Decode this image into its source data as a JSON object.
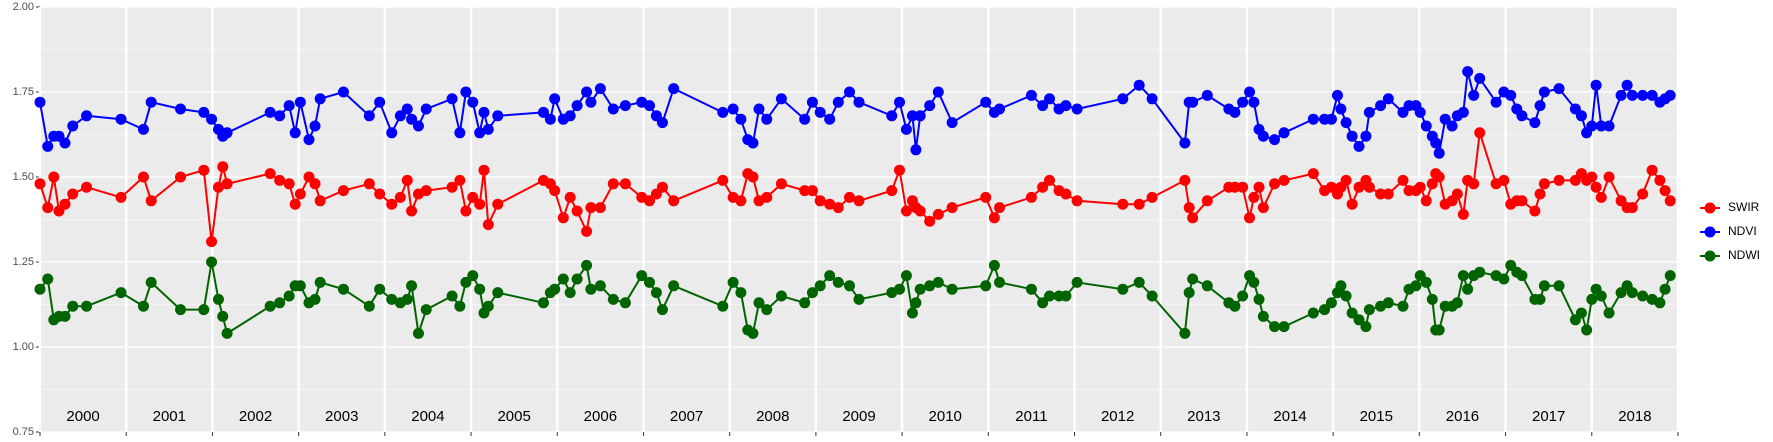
{
  "chart_data": {
    "type": "line",
    "x": [
      2000.0,
      2000.09,
      2000.16,
      2000.22,
      2000.29,
      2000.38,
      2000.54,
      2000.94,
      2001.2,
      2001.29,
      2001.63,
      2001.9,
      2001.99,
      2002.07,
      2002.12,
      2002.17,
      2002.67,
      2002.78,
      2002.89,
      2002.96,
      2003.02,
      2003.12,
      2003.19,
      2003.25,
      2003.52,
      2003.82,
      2003.94,
      2004.08,
      2004.18,
      2004.26,
      2004.31,
      2004.39,
      2004.48,
      2004.78,
      2004.87,
      2004.94,
      2005.02,
      2005.1,
      2005.15,
      2005.2,
      2005.31,
      2005.84,
      2005.92,
      2005.97,
      2006.07,
      2006.15,
      2006.23,
      2006.34,
      2006.39,
      2006.5,
      2006.65,
      2006.79,
      2006.98,
      2007.07,
      2007.15,
      2007.22,
      2007.35,
      2007.92,
      2008.04,
      2008.13,
      2008.21,
      2008.27,
      2008.34,
      2008.43,
      2008.6,
      2008.87,
      2008.96,
      2009.05,
      2009.16,
      2009.26,
      2009.39,
      2009.5,
      2009.88,
      2009.97,
      2010.05,
      2010.12,
      2010.16,
      2010.21,
      2010.32,
      2010.42,
      2010.58,
      2010.97,
      2011.07,
      2011.13,
      2011.5,
      2011.63,
      2011.71,
      2011.82,
      2011.9,
      2012.03,
      2012.56,
      2012.75,
      2012.9,
      2013.28,
      2013.33,
      2013.37,
      2013.54,
      2013.79,
      2013.86,
      2013.95,
      2014.03,
      2014.08,
      2014.14,
      2014.19,
      2014.32,
      2014.43,
      2014.77,
      2014.9,
      2014.98,
      2015.05,
      2015.09,
      2015.15,
      2015.22,
      2015.3,
      2015.38,
      2015.42,
      2015.55,
      2015.64,
      2015.81,
      2015.88,
      2015.96,
      2016.01,
      2016.08,
      2016.15,
      2016.19,
      2016.23,
      2016.3,
      2016.38,
      2016.44,
      2016.51,
      2016.56,
      2016.63,
      2016.7,
      2016.89,
      2016.98,
      2017.06,
      2017.13,
      2017.19,
      2017.34,
      2017.4,
      2017.45,
      2017.62,
      2017.81,
      2017.88,
      2017.94,
      2018.0,
      2018.05,
      2018.11,
      2018.2,
      2018.34,
      2018.41,
      2018.47,
      2018.59,
      2018.7,
      2018.79,
      2018.85,
      2018.91
    ],
    "series": [
      {
        "name": "SWIR",
        "color": "#ff0000",
        "values": [
          1.48,
          1.41,
          1.5,
          1.4,
          1.42,
          1.45,
          1.47,
          1.44,
          1.5,
          1.43,
          1.5,
          1.52,
          1.31,
          1.47,
          1.53,
          1.48,
          1.51,
          1.49,
          1.48,
          1.42,
          1.45,
          1.5,
          1.48,
          1.43,
          1.46,
          1.48,
          1.45,
          1.42,
          1.44,
          1.49,
          1.4,
          1.45,
          1.46,
          1.47,
          1.49,
          1.4,
          1.44,
          1.42,
          1.52,
          1.36,
          1.42,
          1.49,
          1.48,
          1.46,
          1.38,
          1.44,
          1.4,
          1.34,
          1.41,
          1.41,
          1.48,
          1.48,
          1.44,
          1.43,
          1.45,
          1.47,
          1.43,
          1.49,
          1.44,
          1.43,
          1.51,
          1.5,
          1.43,
          1.44,
          1.48,
          1.46,
          1.46,
          1.43,
          1.42,
          1.41,
          1.44,
          1.43,
          1.46,
          1.52,
          1.4,
          1.43,
          1.41,
          1.4,
          1.37,
          1.39,
          1.41,
          1.44,
          1.38,
          1.41,
          1.44,
          1.47,
          1.49,
          1.46,
          1.45,
          1.43,
          1.42,
          1.42,
          1.44,
          1.49,
          1.41,
          1.38,
          1.43,
          1.47,
          1.47,
          1.47,
          1.38,
          1.44,
          1.47,
          1.41,
          1.48,
          1.49,
          1.51,
          1.46,
          1.47,
          1.45,
          1.47,
          1.49,
          1.42,
          1.47,
          1.49,
          1.47,
          1.45,
          1.45,
          1.49,
          1.46,
          1.46,
          1.47,
          1.43,
          1.48,
          1.51,
          1.5,
          1.42,
          1.43,
          1.45,
          1.39,
          1.49,
          1.48,
          1.63,
          1.48,
          1.49,
          1.42,
          1.43,
          1.43,
          1.4,
          1.45,
          1.48,
          1.49,
          1.49,
          1.51,
          1.49,
          1.5,
          1.47,
          1.44,
          1.5,
          1.43,
          1.41,
          1.41,
          1.45,
          1.52,
          1.49,
          1.46,
          1.43
        ]
      },
      {
        "name": "NDVI",
        "color": "#0000ff",
        "values": [
          1.72,
          1.59,
          1.62,
          1.62,
          1.6,
          1.65,
          1.68,
          1.67,
          1.64,
          1.72,
          1.7,
          1.69,
          1.67,
          1.64,
          1.62,
          1.63,
          1.69,
          1.68,
          1.71,
          1.63,
          1.72,
          1.61,
          1.65,
          1.73,
          1.75,
          1.68,
          1.72,
          1.63,
          1.68,
          1.7,
          1.67,
          1.65,
          1.7,
          1.73,
          1.63,
          1.75,
          1.72,
          1.63,
          1.69,
          1.64,
          1.68,
          1.69,
          1.67,
          1.73,
          1.67,
          1.68,
          1.71,
          1.75,
          1.72,
          1.76,
          1.7,
          1.71,
          1.72,
          1.71,
          1.68,
          1.66,
          1.76,
          1.69,
          1.7,
          1.67,
          1.61,
          1.6,
          1.7,
          1.67,
          1.73,
          1.67,
          1.72,
          1.69,
          1.67,
          1.72,
          1.75,
          1.72,
          1.68,
          1.72,
          1.64,
          1.68,
          1.58,
          1.68,
          1.71,
          1.75,
          1.66,
          1.72,
          1.69,
          1.7,
          1.74,
          1.71,
          1.73,
          1.7,
          1.71,
          1.7,
          1.73,
          1.77,
          1.73,
          1.6,
          1.72,
          1.72,
          1.74,
          1.7,
          1.69,
          1.72,
          1.75,
          1.72,
          1.64,
          1.62,
          1.61,
          1.63,
          1.67,
          1.67,
          1.67,
          1.74,
          1.7,
          1.66,
          1.62,
          1.59,
          1.62,
          1.69,
          1.71,
          1.73,
          1.69,
          1.71,
          1.71,
          1.69,
          1.65,
          1.62,
          1.6,
          1.57,
          1.67,
          1.65,
          1.68,
          1.69,
          1.81,
          1.74,
          1.79,
          1.72,
          1.75,
          1.74,
          1.7,
          1.68,
          1.66,
          1.71,
          1.75,
          1.76,
          1.7,
          1.68,
          1.63,
          1.65,
          1.77,
          1.65,
          1.65,
          1.74,
          1.77,
          1.74,
          1.74,
          1.74,
          1.72,
          1.73,
          1.74
        ]
      },
      {
        "name": "NDWI",
        "color": "#006400",
        "values": [
          1.17,
          1.2,
          1.08,
          1.09,
          1.09,
          1.12,
          1.12,
          1.16,
          1.12,
          1.19,
          1.11,
          1.11,
          1.25,
          1.14,
          1.09,
          1.04,
          1.12,
          1.13,
          1.15,
          1.18,
          1.18,
          1.13,
          1.14,
          1.19,
          1.17,
          1.12,
          1.17,
          1.14,
          1.13,
          1.14,
          1.18,
          1.04,
          1.11,
          1.15,
          1.12,
          1.19,
          1.21,
          1.17,
          1.1,
          1.12,
          1.16,
          1.13,
          1.16,
          1.17,
          1.2,
          1.16,
          1.2,
          1.24,
          1.17,
          1.18,
          1.14,
          1.13,
          1.21,
          1.19,
          1.16,
          1.11,
          1.18,
          1.12,
          1.19,
          1.16,
          1.05,
          1.04,
          1.13,
          1.11,
          1.15,
          1.13,
          1.16,
          1.18,
          1.21,
          1.19,
          1.18,
          1.14,
          1.16,
          1.17,
          1.21,
          1.1,
          1.13,
          1.17,
          1.18,
          1.19,
          1.17,
          1.18,
          1.24,
          1.19,
          1.17,
          1.13,
          1.15,
          1.15,
          1.15,
          1.19,
          1.17,
          1.19,
          1.15,
          1.04,
          1.16,
          1.2,
          1.18,
          1.13,
          1.12,
          1.15,
          1.21,
          1.19,
          1.14,
          1.09,
          1.06,
          1.06,
          1.1,
          1.11,
          1.13,
          1.16,
          1.18,
          1.15,
          1.1,
          1.08,
          1.06,
          1.11,
          1.12,
          1.13,
          1.12,
          1.17,
          1.18,
          1.21,
          1.19,
          1.14,
          1.05,
          1.05,
          1.12,
          1.12,
          1.13,
          1.21,
          1.17,
          1.21,
          1.22,
          1.21,
          1.2,
          1.24,
          1.22,
          1.21,
          1.14,
          1.14,
          1.18,
          1.18,
          1.08,
          1.1,
          1.05,
          1.14,
          1.17,
          1.15,
          1.1,
          1.16,
          1.18,
          1.16,
          1.15,
          1.14,
          1.13,
          1.17,
          1.21
        ]
      }
    ],
    "xlim": [
      2000,
      2019
    ],
    "xticks": [
      2000,
      2001,
      2002,
      2003,
      2004,
      2005,
      2006,
      2007,
      2008,
      2009,
      2010,
      2011,
      2012,
      2013,
      2014,
      2015,
      2016,
      2017,
      2018,
      2019
    ],
    "year_labels": [
      {
        "value": 2000.5,
        "label": "2000"
      },
      {
        "value": 2001.5,
        "label": "2001"
      },
      {
        "value": 2002.5,
        "label": "2002"
      },
      {
        "value": 2003.5,
        "label": "2003"
      },
      {
        "value": 2004.5,
        "label": "2004"
      },
      {
        "value": 2005.5,
        "label": "2005"
      },
      {
        "value": 2006.5,
        "label": "2006"
      },
      {
        "value": 2007.5,
        "label": "2007"
      },
      {
        "value": 2008.5,
        "label": "2008"
      },
      {
        "value": 2009.5,
        "label": "2009"
      },
      {
        "value": 2010.5,
        "label": "2010"
      },
      {
        "value": 2011.5,
        "label": "2011"
      },
      {
        "value": 2012.5,
        "label": "2012"
      },
      {
        "value": 2013.5,
        "label": "2013"
      },
      {
        "value": 2014.5,
        "label": "2014"
      },
      {
        "value": 2015.5,
        "label": "2015"
      },
      {
        "value": 2016.5,
        "label": "2016"
      },
      {
        "value": 2017.5,
        "label": "2017"
      },
      {
        "value": 2018.5,
        "label": "2018"
      }
    ],
    "ylim": [
      0.75,
      2.0
    ],
    "yticks": [
      {
        "value": 0.75,
        "label": "0.75"
      },
      {
        "value": 1,
        "label": "1.00"
      },
      {
        "value": 1.25,
        "label": "1.25"
      },
      {
        "value": 1.5,
        "label": "1.50"
      },
      {
        "value": 1.75,
        "label": "1.75"
      },
      {
        "value": 2,
        "label": "2.00"
      }
    ],
    "grid": true,
    "legend": "right"
  }
}
